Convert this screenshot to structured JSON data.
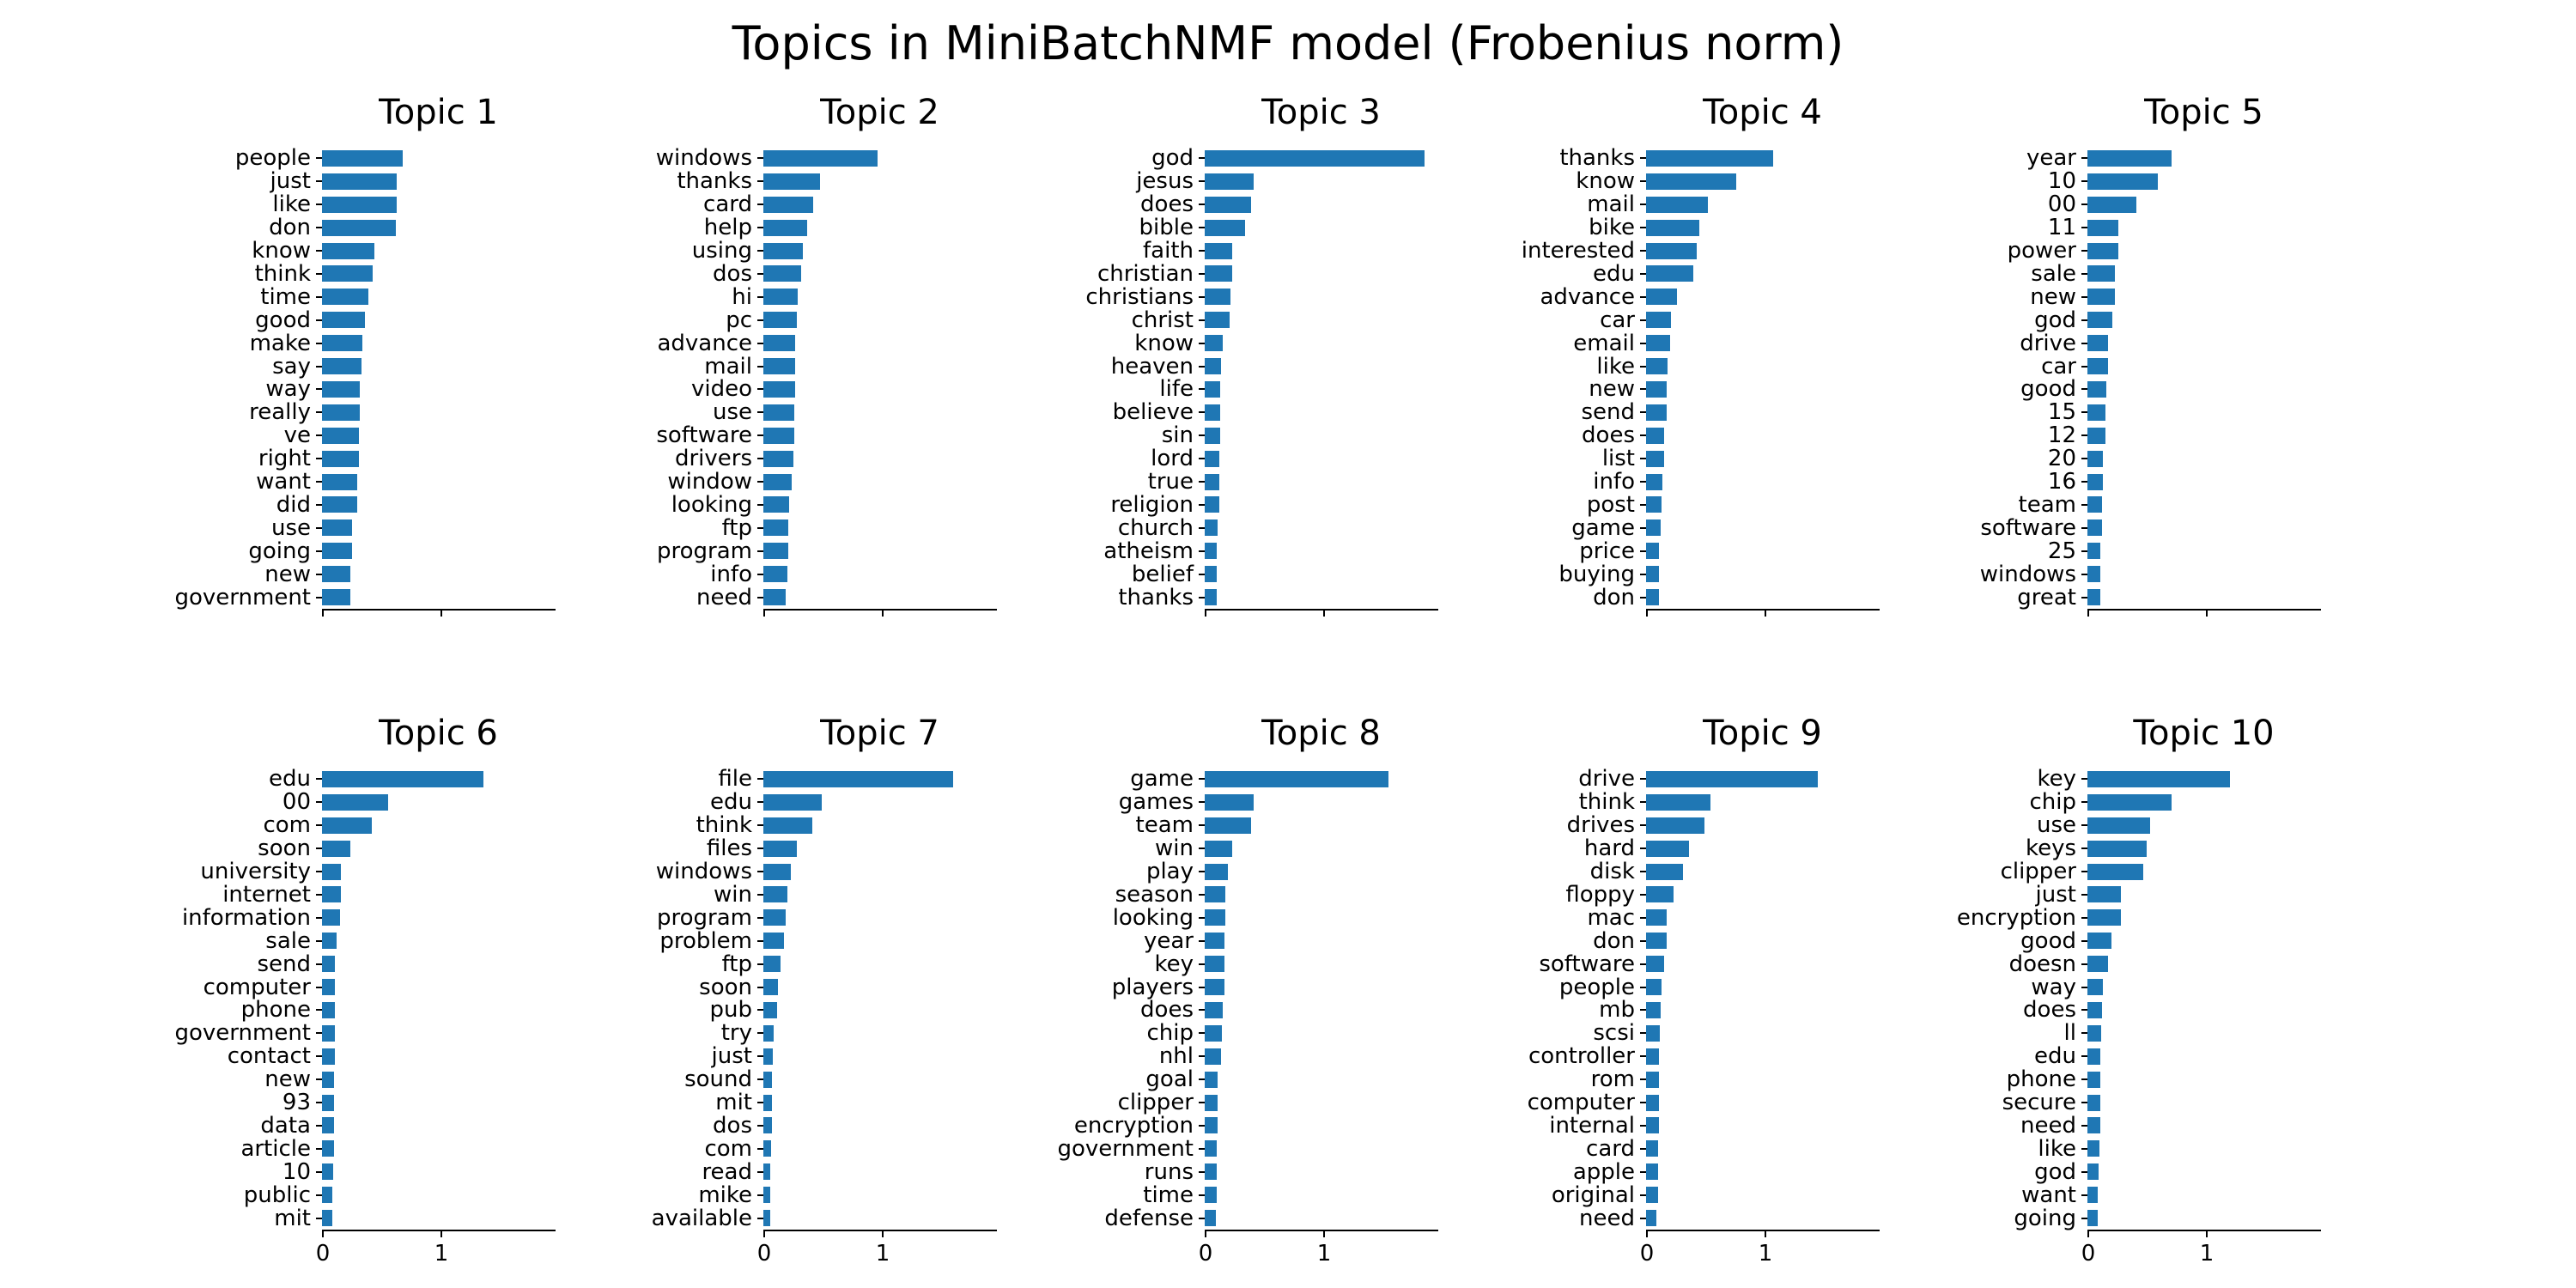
{
  "chart_data": {
    "type": "bar",
    "orientation": "horizontal",
    "title": "Topics in MiniBatchNMF model (Frobenius norm)",
    "bar_color": "#1f77b4",
    "background_color": "#ffffff",
    "grid": "off",
    "legend": "none",
    "xlim": [
      0,
      1.96
    ],
    "x_ticks": [
      0,
      1
    ],
    "x_tick_labels_visible_row": "bottom-only",
    "layout": "2 rows x 5 columns",
    "subplots": [
      {
        "title": "Topic 1",
        "words": [
          "people",
          "just",
          "like",
          "don",
          "know",
          "think",
          "time",
          "good",
          "make",
          "say",
          "way",
          "really",
          "ve",
          "right",
          "want",
          "did",
          "use",
          "going",
          "new",
          "government"
        ],
        "weights": [
          0.68,
          0.63,
          0.63,
          0.62,
          0.44,
          0.43,
          0.39,
          0.36,
          0.34,
          0.33,
          0.32,
          0.32,
          0.31,
          0.31,
          0.3,
          0.3,
          0.25,
          0.25,
          0.24,
          0.24
        ]
      },
      {
        "title": "Topic 2",
        "words": [
          "windows",
          "thanks",
          "card",
          "help",
          "using",
          "dos",
          "hi",
          "pc",
          "advance",
          "mail",
          "video",
          "use",
          "software",
          "drivers",
          "window",
          "looking",
          "ftp",
          "program",
          "info",
          "need"
        ],
        "weights": [
          0.96,
          0.48,
          0.42,
          0.37,
          0.33,
          0.32,
          0.29,
          0.28,
          0.27,
          0.27,
          0.27,
          0.26,
          0.26,
          0.25,
          0.24,
          0.22,
          0.21,
          0.21,
          0.2,
          0.19
        ]
      },
      {
        "title": "Topic 3",
        "words": [
          "god",
          "jesus",
          "does",
          "bible",
          "faith",
          "christian",
          "christians",
          "christ",
          "know",
          "heaven",
          "life",
          "believe",
          "sin",
          "lord",
          "true",
          "religion",
          "church",
          "atheism",
          "belief",
          "thanks"
        ],
        "weights": [
          1.85,
          0.41,
          0.39,
          0.34,
          0.23,
          0.23,
          0.22,
          0.21,
          0.15,
          0.14,
          0.13,
          0.13,
          0.13,
          0.125,
          0.12,
          0.12,
          0.11,
          0.1,
          0.1,
          0.1
        ]
      },
      {
        "title": "Topic 4",
        "words": [
          "thanks",
          "know",
          "mail",
          "bike",
          "interested",
          "edu",
          "advance",
          "car",
          "email",
          "like",
          "new",
          "send",
          "does",
          "list",
          "info",
          "post",
          "game",
          "price",
          "buying",
          "don"
        ],
        "weights": [
          1.07,
          0.76,
          0.52,
          0.45,
          0.43,
          0.4,
          0.26,
          0.21,
          0.2,
          0.18,
          0.175,
          0.17,
          0.15,
          0.15,
          0.14,
          0.13,
          0.12,
          0.11,
          0.11,
          0.11
        ]
      },
      {
        "title": "Topic 5",
        "words": [
          "year",
          "10",
          "00",
          "11",
          "power",
          "sale",
          "new",
          "god",
          "drive",
          "car",
          "good",
          "15",
          "12",
          "20",
          "16",
          "team",
          "software",
          "25",
          "windows",
          "great"
        ],
        "weights": [
          0.71,
          0.59,
          0.41,
          0.26,
          0.26,
          0.23,
          0.23,
          0.21,
          0.17,
          0.17,
          0.16,
          0.15,
          0.15,
          0.13,
          0.13,
          0.12,
          0.12,
          0.11,
          0.11,
          0.105
        ]
      },
      {
        "title": "Topic 6",
        "words": [
          "edu",
          "00",
          "com",
          "soon",
          "university",
          "internet",
          "information",
          "sale",
          "send",
          "computer",
          "phone",
          "government",
          "contact",
          "new",
          "93",
          "data",
          "article",
          "10",
          "public",
          "mit"
        ],
        "weights": [
          1.36,
          0.56,
          0.42,
          0.24,
          0.16,
          0.16,
          0.15,
          0.12,
          0.11,
          0.11,
          0.11,
          0.105,
          0.105,
          0.1,
          0.1,
          0.1,
          0.1,
          0.095,
          0.09,
          0.085
        ]
      },
      {
        "title": "Topic 7",
        "words": [
          "file",
          "edu",
          "think",
          "files",
          "windows",
          "win",
          "program",
          "problem",
          "ftp",
          "soon",
          "pub",
          "try",
          "just",
          "sound",
          "mit",
          "dos",
          "com",
          "read",
          "mike",
          "available"
        ],
        "weights": [
          1.6,
          0.49,
          0.41,
          0.28,
          0.23,
          0.2,
          0.19,
          0.17,
          0.145,
          0.12,
          0.115,
          0.09,
          0.08,
          0.075,
          0.075,
          0.07,
          0.065,
          0.06,
          0.06,
          0.06
        ]
      },
      {
        "title": "Topic 8",
        "words": [
          "game",
          "games",
          "team",
          "win",
          "play",
          "season",
          "looking",
          "year",
          "key",
          "players",
          "does",
          "chip",
          "nhl",
          "goal",
          "clipper",
          "encryption",
          "government",
          "runs",
          "time",
          "defense"
        ],
        "weights": [
          1.55,
          0.41,
          0.39,
          0.23,
          0.195,
          0.175,
          0.17,
          0.165,
          0.165,
          0.165,
          0.15,
          0.145,
          0.14,
          0.11,
          0.105,
          0.105,
          0.1,
          0.1,
          0.1,
          0.095
        ]
      },
      {
        "title": "Topic 9",
        "words": [
          "drive",
          "think",
          "drives",
          "hard",
          "disk",
          "floppy",
          "mac",
          "don",
          "software",
          "people",
          "mb",
          "scsi",
          "controller",
          "rom",
          "computer",
          "internal",
          "card",
          "apple",
          "original",
          "need"
        ],
        "weights": [
          1.45,
          0.54,
          0.49,
          0.36,
          0.31,
          0.23,
          0.175,
          0.17,
          0.15,
          0.13,
          0.125,
          0.115,
          0.11,
          0.11,
          0.105,
          0.105,
          0.1,
          0.1,
          0.1,
          0.09
        ]
      },
      {
        "title": "Topic 10",
        "words": [
          "key",
          "chip",
          "use",
          "keys",
          "clipper",
          "just",
          "encryption",
          "good",
          "doesn",
          "way",
          "does",
          "ll",
          "edu",
          "phone",
          "secure",
          "need",
          "like",
          "god",
          "want",
          "going"
        ],
        "weights": [
          1.2,
          0.71,
          0.53,
          0.5,
          0.47,
          0.28,
          0.28,
          0.2,
          0.17,
          0.13,
          0.12,
          0.115,
          0.11,
          0.11,
          0.11,
          0.105,
          0.1,
          0.095,
          0.09,
          0.09
        ]
      }
    ]
  }
}
